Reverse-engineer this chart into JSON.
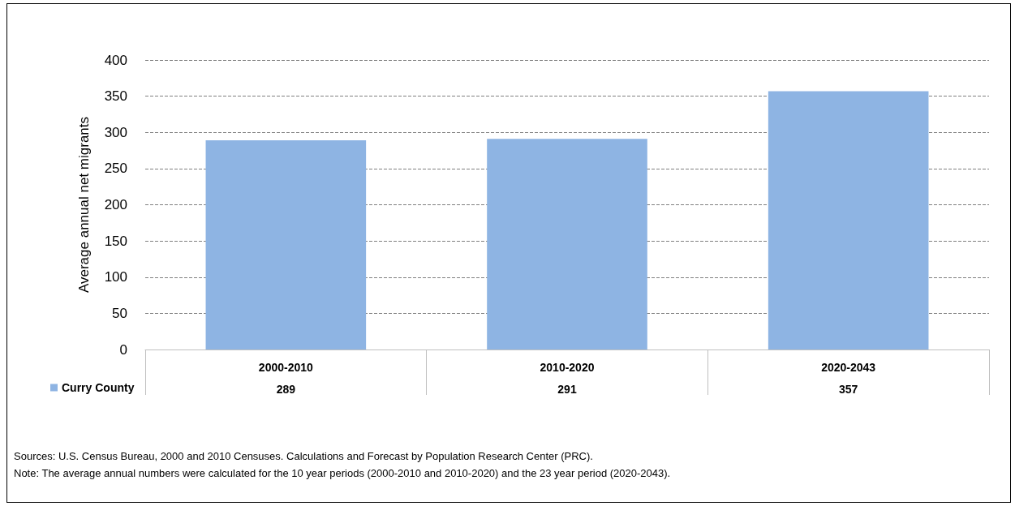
{
  "chart_data": {
    "type": "bar",
    "ylabel": "Average annual net migrants",
    "categories": [
      "2000-2010",
      "2010-2020",
      "2020-2043"
    ],
    "series": [
      {
        "name": "Curry County",
        "color": "#8eb4e3",
        "values": [
          289,
          291,
          357
        ]
      }
    ],
    "ylim": [
      0,
      400
    ],
    "yticks": [
      0,
      50,
      100,
      150,
      200,
      250,
      300,
      350,
      400
    ],
    "grid": "y",
    "legend": "bottom left",
    "data_labels": true,
    "annotations": [
      "Sources: U.S. Census Bureau, 2000 and 2010 Censuses. Calculations and Forecast by Population Research Center (PRC).",
      "Note: The average annual numbers were calculated for the 10 year periods (2000-2010 and 2010-2020) and the 23 year period (2020-2043)."
    ]
  }
}
